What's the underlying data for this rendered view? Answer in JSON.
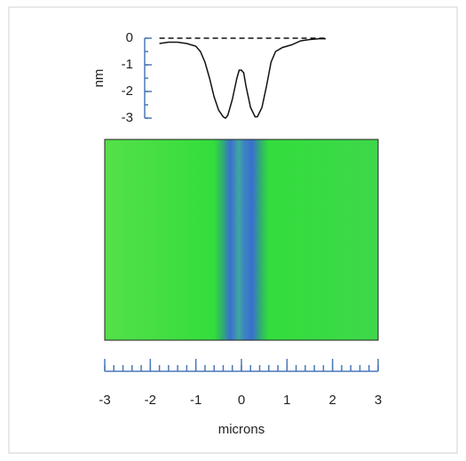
{
  "chart_data": [
    {
      "type": "line",
      "ylabel": "nm",
      "x": [
        -1.8,
        -1.6,
        -1.4,
        -1.2,
        -1.0,
        -0.9,
        -0.8,
        -0.7,
        -0.6,
        -0.5,
        -0.4,
        -0.35,
        -0.3,
        -0.2,
        -0.1,
        -0.05,
        0,
        0.05,
        0.1,
        0.2,
        0.3,
        0.35,
        0.45,
        0.55,
        0.65,
        0.75,
        0.9,
        1.1,
        1.3,
        1.5,
        1.7,
        1.85
      ],
      "values": [
        -0.2,
        -0.15,
        -0.15,
        -0.2,
        -0.3,
        -0.5,
        -0.9,
        -1.5,
        -2.2,
        -2.7,
        -2.95,
        -3.0,
        -2.9,
        -2.3,
        -1.5,
        -1.2,
        -1.2,
        -1.3,
        -1.8,
        -2.6,
        -2.95,
        -2.95,
        -2.6,
        -1.8,
        -0.9,
        -0.5,
        -0.35,
        -0.25,
        -0.1,
        -0.05,
        -0.02,
        -0.02
      ],
      "color": "#111111",
      "reference_line": 0,
      "xlim": [
        -3,
        3
      ],
      "ylim": [
        -3,
        0
      ],
      "yticks": [
        0,
        -1,
        -2,
        -3
      ],
      "yminor": 0.5
    },
    {
      "type": "axis",
      "xlabel": "microns",
      "xlim": [
        -3,
        3
      ],
      "xticks": [
        -3,
        -2,
        -1,
        0,
        1,
        2,
        3
      ],
      "xminor": 0.2
    }
  ]
}
